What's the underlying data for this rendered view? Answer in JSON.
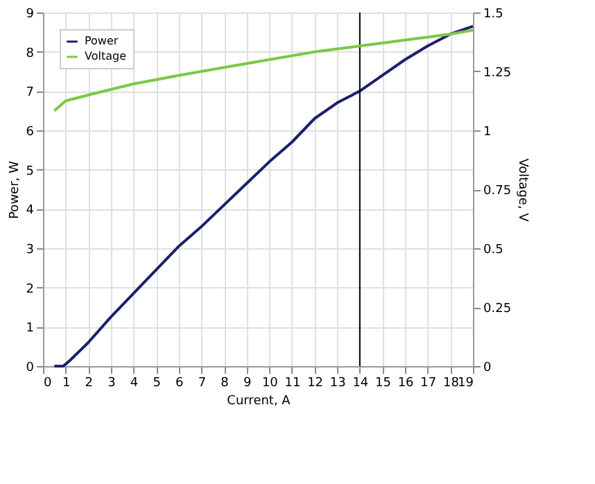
{
  "chart_data": {
    "type": "line",
    "xlabel": "Current, A",
    "ylabel": "Power, W",
    "y2label": "Voltage, V",
    "series": [
      {
        "name": "Power",
        "color": "#1b1f6e",
        "x": [
          0.5,
          0.9,
          1.2,
          2,
          3,
          4,
          5,
          6,
          7,
          8,
          9,
          10,
          11,
          12,
          13,
          14,
          15,
          16,
          17,
          18,
          19
        ],
        "values": [
          0,
          0,
          0.15,
          0.6,
          1.25,
          1.85,
          2.45,
          3.05,
          3.55,
          4.1,
          4.65,
          5.2,
          5.7,
          6.3,
          6.7,
          7.0,
          7.4,
          7.8,
          8.15,
          8.45,
          8.65
        ]
      },
      {
        "name": "Voltage",
        "color": "#7ac943",
        "axis": "y2",
        "x": [
          0.5,
          1,
          2,
          4,
          6,
          8,
          10,
          12,
          14,
          16,
          18,
          19
        ],
        "values": [
          1.083,
          1.125,
          1.15,
          1.197,
          1.233,
          1.267,
          1.3,
          1.333,
          1.358,
          1.383,
          1.408,
          1.425
        ]
      }
    ],
    "xlim": [
      0,
      19
    ],
    "xticks": [
      0,
      1,
      2,
      3,
      4,
      5,
      6,
      7,
      8,
      9,
      10,
      11,
      12,
      13,
      14,
      15,
      16,
      17,
      18,
      19
    ],
    "ylim": [
      0,
      9
    ],
    "yticks": [
      0,
      1,
      2,
      3,
      4,
      5,
      6,
      7,
      8,
      9
    ],
    "y2lim": [
      0,
      1.5
    ],
    "y2ticks": [
      0,
      0.25,
      0.5,
      0.75,
      1,
      1.25,
      1.5
    ],
    "ref_lines": [
      {
        "axis": "x",
        "value": 14,
        "color": "#000000"
      }
    ],
    "grid": true,
    "legend": "top left",
    "marker": "none",
    "line_style": "solid"
  }
}
